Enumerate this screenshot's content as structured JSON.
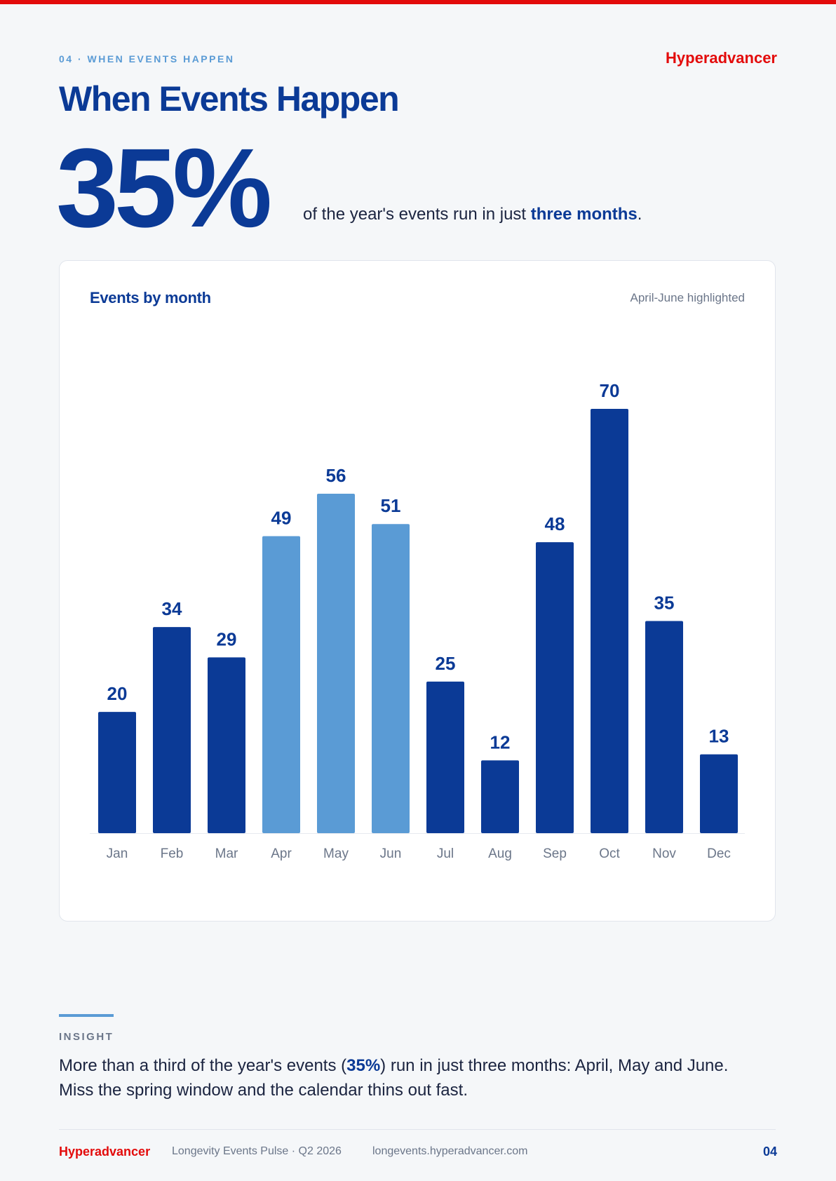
{
  "header": {
    "eyebrow": "04 · WHEN EVENTS HAPPEN",
    "brand": "Hyperadvancer",
    "title": "When Events Happen"
  },
  "stat": {
    "value": "35%",
    "caption_before": "of the year's events run in just ",
    "caption_emphasis": "three months",
    "caption_after": "."
  },
  "chart_data": {
    "type": "bar",
    "title": "Events by month",
    "note": "April-June highlighted",
    "categories": [
      "Jan",
      "Feb",
      "Mar",
      "Apr",
      "May",
      "Jun",
      "Jul",
      "Aug",
      "Sep",
      "Oct",
      "Nov",
      "Dec"
    ],
    "values": [
      20,
      34,
      29,
      49,
      56,
      51,
      25,
      12,
      48,
      70,
      35,
      13
    ],
    "highlighted": [
      "Apr",
      "May",
      "Jun"
    ],
    "ylim": [
      0,
      70
    ],
    "grid": false,
    "colors": {
      "default": "#0b3a96",
      "highlight": "#5a9bd5",
      "label": "#0b3a96",
      "axis": "#6b7689"
    }
  },
  "insight": {
    "label": "INSIGHT",
    "text_before": "More than a third of the year's events (",
    "text_emphasis": "35%",
    "text_after": ") run in just three months: April, May and June. Miss the spring window and the calendar thins out fast."
  },
  "footer": {
    "brand": "Hyperadvancer",
    "report": "Longevity Events Pulse · Q2 2026",
    "url": "longevents.hyperadvancer.com",
    "page": "04"
  }
}
